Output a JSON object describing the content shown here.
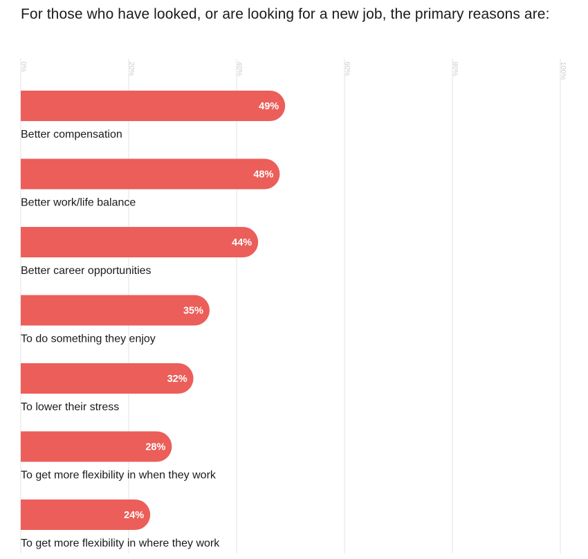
{
  "chart_data": {
    "type": "bar",
    "orientation": "horizontal",
    "title": "For those who have looked, or are looking for a new job, the primary reasons are:",
    "categories": [
      "Better compensation",
      "Better work/life balance",
      "Better career opportunities",
      "To do something they enjoy",
      "To lower their stress",
      "To get more flexibility in when they work",
      "To get more flexibility in where they work"
    ],
    "values": [
      49,
      48,
      44,
      35,
      32,
      28,
      24
    ],
    "value_labels": [
      "49%",
      "48%",
      "44%",
      "35%",
      "32%",
      "28%",
      "24%"
    ],
    "xlim": [
      0,
      100
    ],
    "ticks": [
      0,
      20,
      40,
      60,
      80,
      100
    ],
    "tick_labels": [
      "0%",
      "20%",
      "40%",
      "60%",
      "80%",
      "100%"
    ],
    "grid": true,
    "bar_color": "#ec5e59",
    "grid_color": "#e3e3e3"
  }
}
